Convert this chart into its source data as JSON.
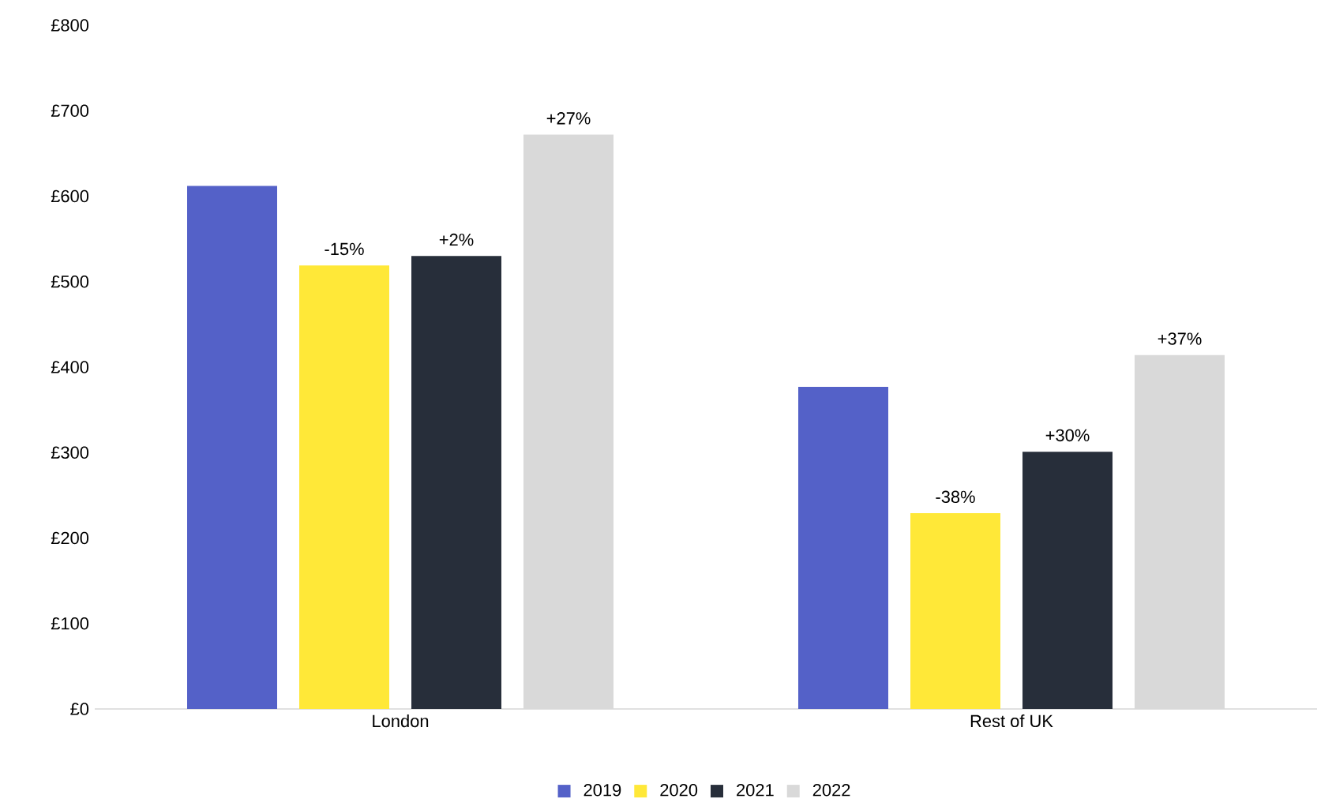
{
  "chart_data": {
    "type": "bar",
    "categories": [
      "London",
      "Rest of UK"
    ],
    "series": [
      {
        "name": "2019",
        "color": "#5461c8",
        "values": [
          612,
          377
        ]
      },
      {
        "name": "2020",
        "color": "#ffe838",
        "values": [
          519,
          229
        ]
      },
      {
        "name": "2021",
        "color": "#272e3a",
        "values": [
          530,
          301
        ]
      },
      {
        "name": "2022",
        "color": "#d9d9d9",
        "values": [
          672,
          414
        ]
      }
    ],
    "annotations": [
      "-15%",
      "+2%",
      "+27%",
      "-38%",
      "+30%",
      "+37%"
    ],
    "ylim": [
      0,
      800
    ],
    "yticks": [
      {
        "value": 0,
        "label": "£0"
      },
      {
        "value": 100,
        "label": "£100"
      },
      {
        "value": 200,
        "label": "£200"
      },
      {
        "value": 300,
        "label": "£300"
      },
      {
        "value": 400,
        "label": "£400"
      },
      {
        "value": 500,
        "label": "£500"
      },
      {
        "value": 600,
        "label": "£600"
      },
      {
        "value": 700,
        "label": "£700"
      },
      {
        "value": 800,
        "label": "£800"
      }
    ],
    "legend": "bottom"
  }
}
